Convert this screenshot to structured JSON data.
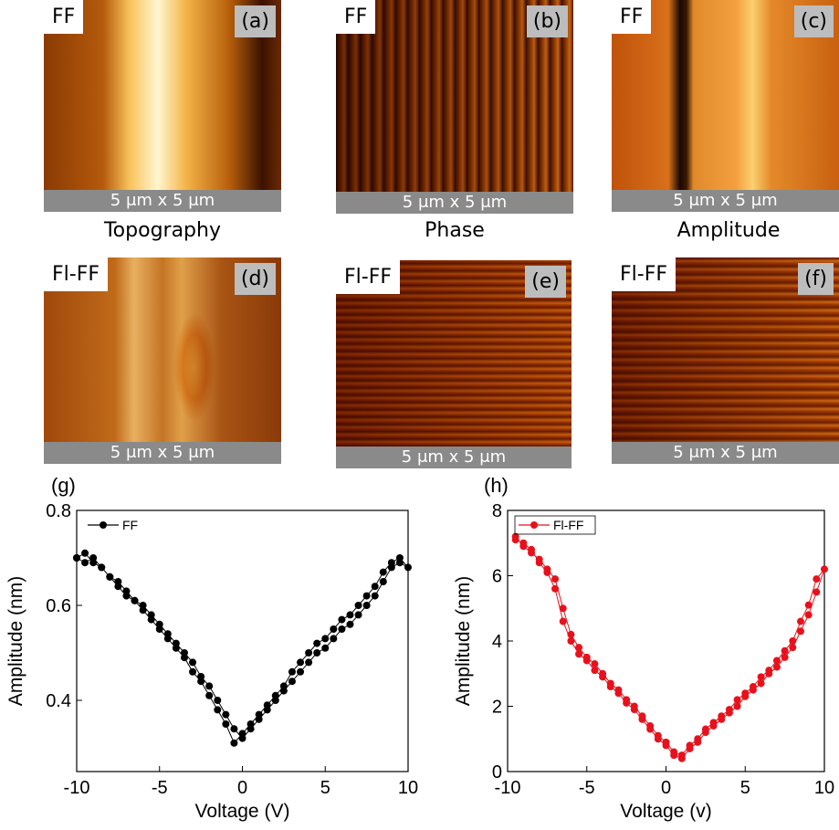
{
  "panels": [
    {
      "tag": "FF",
      "letter": "(a)",
      "scale": "5 μm x 5 μm"
    },
    {
      "tag": "FF",
      "letter": "(b)",
      "scale": "5 μm x 5 μm"
    },
    {
      "tag": "FF",
      "letter": "(c)",
      "scale": "5 μm x 5 μm"
    },
    {
      "tag": "Fl-FF",
      "letter": "(d)",
      "scale": "5 μm x 5 μm"
    },
    {
      "tag": "Fl-FF",
      "letter": "(e)",
      "scale": "5 μm x 5 μm"
    },
    {
      "tag": "Fl-FF",
      "letter": "(f)",
      "scale": "5 μm x 5 μm"
    }
  ],
  "captions": [
    "Topography",
    "Phase",
    "Amplitude"
  ],
  "chart_data": [
    {
      "type": "line",
      "label": "(g)",
      "xlabel": "Voltage (V)",
      "ylabel": "Amplitude (nm)",
      "xlim": [
        -10,
        10
      ],
      "xticks": [
        -10,
        -5,
        0,
        5,
        10
      ],
      "ylim": [
        0.25,
        0.8
      ],
      "yticks": [
        0.4,
        0.6,
        0.8
      ],
      "legend": "upper-left",
      "series": [
        {
          "name": "FF",
          "color": "#000000",
          "x": [
            -10,
            -9.5,
            -9,
            -8.5,
            -8,
            -7.5,
            -7,
            -6.5,
            -6,
            -5.5,
            -5,
            -4.5,
            -4,
            -3.5,
            -3,
            -2.5,
            -2,
            -1.5,
            -1,
            -0.5,
            0,
            0.5,
            1,
            1.5,
            2,
            2.5,
            3,
            3.5,
            4,
            4.5,
            5,
            5.5,
            6,
            6.5,
            7,
            7.5,
            8,
            8.5,
            9,
            9.5,
            10,
            9.5,
            9,
            8.5,
            8,
            7.5,
            7,
            6.5,
            6,
            5.5,
            5,
            4.5,
            4,
            3.5,
            3,
            2.5,
            2,
            1.5,
            1,
            0.5,
            0,
            -0.5,
            -1,
            -1.5,
            -2,
            -2.5,
            -3,
            -3.5,
            -4,
            -4.5,
            -5,
            -5.5,
            -6,
            -6.5,
            -7,
            -7.5,
            -8,
            -8.5,
            -9,
            -9.5,
            -10
          ],
          "values": [
            0.7,
            0.69,
            0.7,
            0.68,
            0.66,
            0.65,
            0.63,
            0.61,
            0.6,
            0.58,
            0.56,
            0.54,
            0.52,
            0.5,
            0.48,
            0.45,
            0.43,
            0.4,
            0.37,
            0.34,
            0.32,
            0.34,
            0.36,
            0.38,
            0.4,
            0.42,
            0.44,
            0.46,
            0.48,
            0.5,
            0.51,
            0.53,
            0.55,
            0.56,
            0.58,
            0.6,
            0.62,
            0.65,
            0.68,
            0.69,
            0.68,
            0.7,
            0.69,
            0.67,
            0.64,
            0.62,
            0.6,
            0.58,
            0.57,
            0.55,
            0.53,
            0.52,
            0.5,
            0.48,
            0.46,
            0.43,
            0.41,
            0.39,
            0.37,
            0.35,
            0.33,
            0.31,
            0.35,
            0.38,
            0.41,
            0.44,
            0.46,
            0.49,
            0.51,
            0.53,
            0.55,
            0.57,
            0.59,
            0.61,
            0.62,
            0.64,
            0.66,
            0.68,
            0.69,
            0.71,
            0.7
          ]
        }
      ]
    },
    {
      "type": "line",
      "label": "(h)",
      "xlabel": "Voltage (v)",
      "ylabel": "Amplitude (nm)",
      "xlim": [
        -10,
        10
      ],
      "xticks": [
        -10,
        -5,
        0,
        5,
        10
      ],
      "ylim": [
        0,
        8
      ],
      "yticks": [
        0,
        2,
        4,
        6,
        8
      ],
      "legend": "upper-left",
      "series": [
        {
          "name": "Fl-FF",
          "color": "#e8111b",
          "x": [
            -9.5,
            -9,
            -8.5,
            -8,
            -7.5,
            -7,
            -6.5,
            -6,
            -5.5,
            -5,
            -4.5,
            -4,
            -3.5,
            -3,
            -2.5,
            -2,
            -1.5,
            -1,
            -0.5,
            0,
            0.5,
            1,
            1.5,
            2,
            2.5,
            3,
            3.5,
            4,
            4.5,
            5,
            5.5,
            6,
            6.5,
            7,
            7.5,
            8,
            8.5,
            9,
            9.5,
            10,
            9.5,
            9,
            8.5,
            8,
            7.5,
            7,
            6.5,
            6,
            5.5,
            5,
            4.5,
            4,
            3.5,
            3,
            2.5,
            2,
            1.5,
            1,
            0.5,
            0,
            -0.5,
            -1,
            -1.5,
            -2,
            -2.5,
            -3,
            -3.5,
            -4,
            -4.5,
            -5,
            -5.5,
            -6,
            -6.5,
            -7,
            -7.5,
            -8,
            -8.5,
            -9,
            -9.5
          ],
          "values": [
            7.1,
            7.0,
            6.8,
            6.4,
            6.1,
            5.6,
            4.6,
            4.0,
            3.6,
            3.4,
            3.1,
            2.9,
            2.6,
            2.4,
            2.1,
            1.9,
            1.6,
            1.3,
            1.0,
            0.8,
            0.5,
            0.4,
            0.7,
            0.9,
            1.2,
            1.4,
            1.6,
            1.8,
            2.0,
            2.3,
            2.5,
            2.7,
            3.0,
            3.2,
            3.5,
            3.8,
            4.3,
            4.8,
            5.5,
            6.2,
            5.9,
            5.1,
            4.6,
            4.0,
            3.7,
            3.4,
            3.1,
            2.9,
            2.6,
            2.4,
            2.2,
            1.9,
            1.7,
            1.5,
            1.3,
            1.0,
            0.8,
            0.5,
            0.6,
            0.9,
            1.1,
            1.4,
            1.7,
            2.0,
            2.2,
            2.5,
            2.7,
            3.0,
            3.3,
            3.5,
            3.8,
            4.2,
            5.0,
            5.9,
            6.2,
            6.5,
            6.7,
            6.9,
            7.2
          ]
        }
      ]
    }
  ]
}
